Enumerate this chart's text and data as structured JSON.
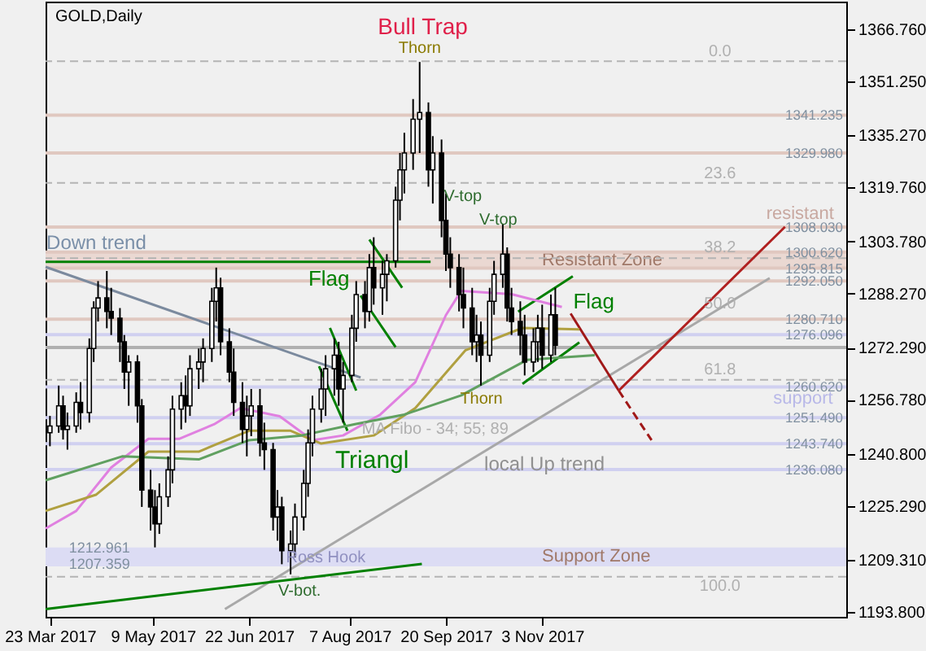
{
  "chart_data": {
    "type": "candlestick",
    "title": "GOLD,Daily",
    "x": [
      "2017-03-23",
      "2017-03-27",
      "2017-03-29",
      "2017-03-31",
      "2017-04-04",
      "2017-04-06",
      "2017-04-10",
      "2017-04-12",
      "2017-04-14",
      "2017-04-18",
      "2017-04-20",
      "2017-04-24",
      "2017-04-26",
      "2017-04-28",
      "2017-05-02",
      "2017-05-04",
      "2017-05-08",
      "2017-05-10",
      "2017-05-12",
      "2017-05-16",
      "2017-05-18",
      "2017-05-22",
      "2017-05-24",
      "2017-05-26",
      "2017-05-30",
      "2017-06-01",
      "2017-06-05",
      "2017-06-07",
      "2017-06-09",
      "2017-06-13",
      "2017-06-15",
      "2017-06-19",
      "2017-06-21",
      "2017-06-23",
      "2017-06-27",
      "2017-06-29",
      "2017-07-03",
      "2017-07-05",
      "2017-07-07",
      "2017-07-11",
      "2017-07-13",
      "2017-07-17",
      "2017-07-19",
      "2017-07-21",
      "2017-07-25",
      "2017-07-27",
      "2017-07-31",
      "2017-08-02",
      "2017-08-04",
      "2017-08-08",
      "2017-08-10",
      "2017-08-14",
      "2017-08-16",
      "2017-08-18",
      "2017-08-22",
      "2017-08-24",
      "2017-08-28",
      "2017-08-30",
      "2017-09-01",
      "2017-09-05",
      "2017-09-08",
      "2017-09-12",
      "2017-09-14",
      "2017-09-18",
      "2017-09-20",
      "2017-09-22",
      "2017-09-26",
      "2017-09-28",
      "2017-10-02",
      "2017-10-04",
      "2017-10-06",
      "2017-10-10",
      "2017-10-12",
      "2017-10-16",
      "2017-10-18",
      "2017-10-20",
      "2017-10-24",
      "2017-10-26",
      "2017-10-30",
      "2017-11-01",
      "2017-11-03",
      "2017-11-07",
      "2017-11-09"
    ],
    "ohlc": [
      [
        1247,
        1252,
        1243,
        1249
      ],
      [
        1249,
        1261,
        1247,
        1255
      ],
      [
        1255,
        1258,
        1245,
        1248
      ],
      [
        1248,
        1253,
        1242,
        1249
      ],
      [
        1249,
        1259,
        1247,
        1256
      ],
      [
        1256,
        1262,
        1248,
        1253
      ],
      [
        1253,
        1275,
        1250,
        1272
      ],
      [
        1272,
        1286,
        1268,
        1284
      ],
      [
        1284,
        1292,
        1280,
        1287
      ],
      [
        1287,
        1295,
        1278,
        1283
      ],
      [
        1283,
        1290,
        1276,
        1281
      ],
      [
        1281,
        1284,
        1268,
        1274
      ],
      [
        1274,
        1276,
        1260,
        1265
      ],
      [
        1265,
        1270,
        1255,
        1268
      ],
      [
        1268,
        1270,
        1250,
        1255
      ],
      [
        1255,
        1257,
        1225,
        1230
      ],
      [
        1230,
        1236,
        1218,
        1225
      ],
      [
        1225,
        1230,
        1213,
        1220
      ],
      [
        1220,
        1232,
        1217,
        1228
      ],
      [
        1228,
        1240,
        1225,
        1236
      ],
      [
        1236,
        1258,
        1232,
        1254
      ],
      [
        1254,
        1262,
        1248,
        1258
      ],
      [
        1258,
        1264,
        1250,
        1255
      ],
      [
        1255,
        1270,
        1252,
        1266
      ],
      [
        1266,
        1272,
        1260,
        1268
      ],
      [
        1268,
        1275,
        1262,
        1272
      ],
      [
        1272,
        1290,
        1268,
        1286
      ],
      [
        1286,
        1296,
        1280,
        1290
      ],
      [
        1290,
        1293,
        1270,
        1274
      ],
      [
        1274,
        1278,
        1262,
        1265
      ],
      [
        1265,
        1272,
        1252,
        1256
      ],
      [
        1256,
        1262,
        1244,
        1248
      ],
      [
        1248,
        1258,
        1240,
        1252
      ],
      [
        1252,
        1260,
        1246,
        1255
      ],
      [
        1255,
        1260,
        1240,
        1244
      ],
      [
        1244,
        1250,
        1236,
        1242
      ],
      [
        1242,
        1244,
        1218,
        1222
      ],
      [
        1222,
        1230,
        1215,
        1225
      ],
      [
        1225,
        1228,
        1208,
        1212
      ],
      [
        1212,
        1218,
        1205,
        1214
      ],
      [
        1214,
        1226,
        1210,
        1222
      ],
      [
        1222,
        1236,
        1218,
        1232
      ],
      [
        1232,
        1248,
        1228,
        1244
      ],
      [
        1244,
        1258,
        1240,
        1254
      ],
      [
        1254,
        1266,
        1250,
        1260
      ],
      [
        1260,
        1270,
        1252,
        1266
      ],
      [
        1266,
        1275,
        1258,
        1270
      ],
      [
        1270,
        1274,
        1255,
        1260
      ],
      [
        1260,
        1268,
        1250,
        1264
      ],
      [
        1264,
        1282,
        1262,
        1278
      ],
      [
        1278,
        1292,
        1274,
        1288
      ],
      [
        1288,
        1292,
        1278,
        1283
      ],
      [
        1283,
        1300,
        1280,
        1296
      ],
      [
        1296,
        1305,
        1285,
        1290
      ],
      [
        1290,
        1298,
        1282,
        1294
      ],
      [
        1294,
        1300,
        1286,
        1298
      ],
      [
        1298,
        1320,
        1296,
        1316
      ],
      [
        1316,
        1330,
        1310,
        1325
      ],
      [
        1325,
        1336,
        1318,
        1330
      ],
      [
        1330,
        1346,
        1325,
        1340
      ],
      [
        1340,
        1357,
        1330,
        1342
      ],
      [
        1342,
        1345,
        1320,
        1325
      ],
      [
        1325,
        1335,
        1315,
        1330
      ],
      [
        1330,
        1334,
        1305,
        1310
      ],
      [
        1310,
        1318,
        1295,
        1300
      ],
      [
        1300,
        1305,
        1290,
        1296
      ],
      [
        1296,
        1300,
        1283,
        1288
      ],
      [
        1288,
        1296,
        1278,
        1284
      ],
      [
        1284,
        1290,
        1270,
        1274
      ],
      [
        1274,
        1282,
        1268,
        1276
      ],
      [
        1276,
        1280,
        1261,
        1270
      ],
      [
        1270,
        1290,
        1268,
        1286
      ],
      [
        1286,
        1298,
        1282,
        1294
      ],
      [
        1294,
        1309,
        1290,
        1300
      ],
      [
        1300,
        1302,
        1280,
        1284
      ],
      [
        1284,
        1290,
        1276,
        1280
      ],
      [
        1280,
        1286,
        1270,
        1276
      ],
      [
        1276,
        1282,
        1264,
        1268
      ],
      [
        1268,
        1278,
        1265,
        1274
      ],
      [
        1274,
        1282,
        1268,
        1278
      ],
      [
        1278,
        1285,
        1266,
        1270
      ],
      [
        1270,
        1288,
        1268,
        1282
      ],
      [
        1282,
        1290,
        1270,
        1273
      ]
    ],
    "series": [
      {
        "type": "line",
        "color": "#7b8a9e",
        "x": [
          "2017-03-21",
          "2017-08-12"
        ],
        "values": [
          1296.2,
          1263.4
        ]
      },
      {
        "type": "line",
        "color": "#a8a8a8",
        "x": [
          "2017-06-11",
          "2018-02-15"
        ],
        "values": [
          1194.7,
          1292.9
        ]
      },
      {
        "type": "line",
        "color": "#008000",
        "x": [
          "2017-03-21",
          "2017-09-13"
        ],
        "values": [
          1297.7,
          1297.7
        ]
      },
      {
        "type": "line",
        "color": "#008000",
        "x": [
          "2017-03-21",
          "2017-09-09"
        ],
        "values": [
          1194.7,
          1208.1
        ]
      },
      {
        "type": "line",
        "color": "#008000",
        "x": [
          "2017-08-16",
          "2017-08-31"
        ],
        "values": [
          1304.3,
          1290.0
        ]
      },
      {
        "type": "line",
        "color": "#008000",
        "x": [
          "2017-08-12",
          "2017-08-28"
        ],
        "values": [
          1287.7,
          1272.4
        ]
      },
      {
        "type": "line",
        "color": "#008000",
        "x": [
          "2017-07-29",
          "2017-08-10"
        ],
        "values": [
          1278.1,
          1259.5
        ]
      },
      {
        "type": "line",
        "color": "#008000",
        "x": [
          "2017-07-24",
          "2017-08-06"
        ],
        "values": [
          1266.7,
          1247.6
        ]
      },
      {
        "type": "line",
        "color": "#008000",
        "x": [
          "2017-10-23",
          "2017-11-17"
        ],
        "values": [
          1282.9,
          1293.4
        ]
      },
      {
        "type": "line",
        "color": "#008000",
        "x": [
          "2017-10-25",
          "2017-11-20"
        ],
        "values": [
          1261.5,
          1273.8
        ]
      },
      {
        "type": "line",
        "color": "#a01818",
        "x": [
          "2017-11-16",
          "2017-12-08"
        ],
        "values": [
          1282.4,
          1259.5
        ]
      },
      {
        "type": "line",
        "color": "#a01818",
        "line_style": "dashed",
        "x": [
          "2017-12-08",
          "2017-12-23"
        ],
        "values": [
          1259.5,
          1244.8
        ]
      },
      {
        "type": "line",
        "color": "#b02020",
        "x": [
          "2017-12-08",
          "2018-02-22"
        ],
        "values": [
          1259.5,
          1308.1
        ]
      },
      {
        "type": "line",
        "color": "#e080e0",
        "x": [
          "2017-03-21",
          "2017-04-04",
          "2017-04-20",
          "2017-05-07",
          "2017-05-21",
          "2017-06-06",
          "2017-06-18",
          "2017-07-06",
          "2017-07-21",
          "2017-08-04",
          "2017-08-21",
          "2017-09-06",
          "2017-09-20",
          "2017-09-27",
          "2017-10-20",
          "2017-11-12"
        ],
        "values": [
          1218.6,
          1223.8,
          1236.7,
          1245.2,
          1245.2,
          1249.5,
          1254.3,
          1251.9,
          1244.8,
          1246.2,
          1252.4,
          1262.0,
          1281.9,
          1289.1,
          1288.1,
          1284.3
        ]
      },
      {
        "type": "line",
        "color": "#b0a040",
        "x": [
          "2017-03-21",
          "2017-04-13",
          "2017-05-07",
          "2017-05-30",
          "2017-06-22",
          "2017-07-11",
          "2017-07-25",
          "2017-08-18",
          "2017-09-06",
          "2017-09-29",
          "2017-10-25",
          "2017-11-20"
        ],
        "values": [
          1223.8,
          1228.6,
          1241.4,
          1241.4,
          1247.6,
          1247.6,
          1243.8,
          1246.2,
          1254.3,
          1271.5,
          1278.1,
          1277.7
        ]
      },
      {
        "type": "line",
        "color": "#60a060",
        "x": [
          "2017-03-21",
          "2017-04-25",
          "2017-05-30",
          "2017-06-22",
          "2017-07-16",
          "2017-08-09",
          "2017-09-01",
          "2017-09-27",
          "2017-10-27",
          "2017-11-27"
        ],
        "values": [
          1232.9,
          1240.0,
          1239.1,
          1244.8,
          1246.2,
          1249.5,
          1252.4,
          1258.1,
          1268.6,
          1270.0
        ]
      }
    ],
    "xlim": [
      "2017-03-21",
      "2018-03-22"
    ],
    "xticks": [
      {
        "value": "2017-03-23",
        "label": "23 Mar 2017"
      },
      {
        "value": "2017-05-09",
        "label": "9 May 2017"
      },
      {
        "value": "2017-06-22",
        "label": "22 Jun 2017"
      },
      {
        "value": "2017-08-07",
        "label": "7 Aug 2017"
      },
      {
        "value": "2017-09-20",
        "label": "20 Sep 2017"
      },
      {
        "value": "2017-11-03",
        "label": "3 Nov 2017"
      }
    ],
    "ylim": [
      1192.4,
      1374.9
    ],
    "yticks": [
      {
        "value": 1366.76,
        "label": "1366.760"
      },
      {
        "value": 1351.25,
        "label": "1351.250"
      },
      {
        "value": 1335.27,
        "label": "1335.270"
      },
      {
        "value": 1319.76,
        "label": "1319.760"
      },
      {
        "value": 1303.78,
        "label": "1303.780"
      },
      {
        "value": 1288.27,
        "label": "1288.270"
      },
      {
        "value": 1272.29,
        "label": "1272.290"
      },
      {
        "value": 1256.78,
        "label": "1256.780"
      },
      {
        "value": 1240.8,
        "label": "1240.800"
      },
      {
        "value": 1225.29,
        "label": "1225.290"
      },
      {
        "value": 1209.31,
        "label": "1209.310"
      },
      {
        "value": 1193.8,
        "label": "1193.800"
      }
    ],
    "bands": [
      {
        "axis": "y",
        "from": 1295.815,
        "to": 1300.62,
        "label": "Resistant Zone",
        "color": "#ead8d2"
      },
      {
        "axis": "y",
        "from": 1207.359,
        "to": 1212.961,
        "label": "Support Zone",
        "color": "#dcdcf4"
      }
    ],
    "ref_lines": [
      {
        "axis": "y",
        "value": 1357.2,
        "color": "#b4b4b4",
        "line_style": "dashed"
      },
      {
        "axis": "y",
        "value": 1321.1,
        "color": "#b4b4b4",
        "line_style": "dashed"
      },
      {
        "axis": "y",
        "value": 1298.8,
        "color": "#b4b4b4",
        "line_style": "dashed"
      },
      {
        "axis": "y",
        "value": 1262.7,
        "color": "#b4b4b4",
        "line_style": "dashed"
      },
      {
        "axis": "y",
        "value": 1204.3,
        "color": "#b4b4b4",
        "line_style": "dashed"
      },
      {
        "axis": "y",
        "value": 1341.235,
        "label": "1341.235",
        "color": "#e0c8c0"
      },
      {
        "axis": "y",
        "value": 1329.98,
        "label": "1329.980",
        "color": "#e0c8c0"
      },
      {
        "axis": "y",
        "value": 1308.03,
        "label": "1308.030",
        "color": "#e0c8c0"
      },
      {
        "axis": "y",
        "value": 1300.62,
        "label": "1300.620",
        "color": "#e0c8c0"
      },
      {
        "axis": "y",
        "value": 1295.815,
        "label": "1295.815",
        "color": "#e0c8c0"
      },
      {
        "axis": "y",
        "value": 1292.05,
        "label": "1292.050",
        "color": "#e0c8c0"
      },
      {
        "axis": "y",
        "value": 1280.71,
        "label": "1280.710",
        "color": "#e0c8c0"
      },
      {
        "axis": "y",
        "value": 1276.096,
        "label": "1276.096",
        "color": "#d0d0f0"
      },
      {
        "axis": "y",
        "value": 1272.29,
        "label": null,
        "color": "#b0b0b0"
      },
      {
        "axis": "y",
        "value": 1260.62,
        "label": "1260.620",
        "color": "#d0d0f0"
      },
      {
        "axis": "y",
        "value": 1251.49,
        "label": "1251.490",
        "color": "#d0d0f0"
      },
      {
        "axis": "y",
        "value": 1243.74,
        "label": "1243.740",
        "color": "#d0d0f0"
      },
      {
        "axis": "y",
        "value": 1236.08,
        "label": "1236.080",
        "color": "#d0d0f0"
      }
    ],
    "annotations": [
      "0.0",
      "23.6",
      "38.2",
      "50.0",
      "61.8",
      "100.0",
      "Bull Trap",
      "Thorn",
      "V-top",
      "V-top",
      "Flag",
      "Flag",
      "Down trend",
      "Thorn",
      "MA Fibo - 34; 55; 89",
      "Triangl",
      "local Up trend",
      "Ross Hook",
      "V-bot.",
      "1212.961",
      "1207.359",
      "resistant",
      "support"
    ]
  }
}
